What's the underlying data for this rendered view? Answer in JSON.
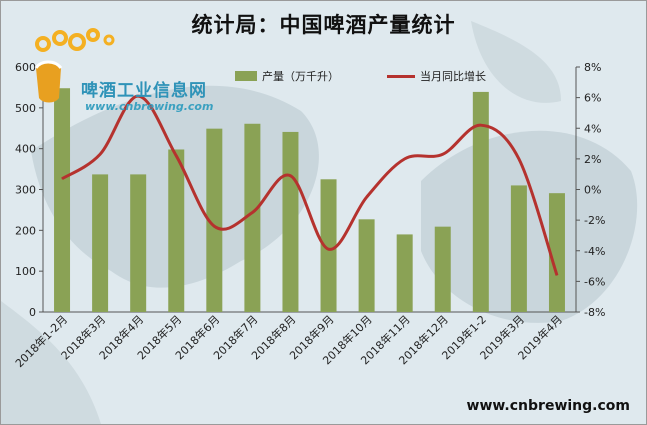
{
  "chart_data": {
    "type": "bar",
    "title": "统计局：中国啤酒产量统计",
    "categories": [
      "2018年1-2月",
      "2018年3月",
      "2018年4月",
      "2018年5月",
      "2018年6月",
      "2018年7月",
      "2018年8月",
      "2018年9月",
      "2018年10月",
      "2018年11月",
      "2018年12月",
      "2019年1-2",
      "2019年3月",
      "2019年4月"
    ],
    "series": [
      {
        "name": "产量（万千升）",
        "type": "bar",
        "axis": "left",
        "color": "#8aa255",
        "values": [
          548,
          337,
          337,
          398,
          449,
          461,
          441,
          325,
          227,
          190,
          209,
          539,
          310,
          291
        ]
      },
      {
        "name": "当月同比增长",
        "type": "line",
        "axis": "right",
        "color": "#b5322e",
        "values": [
          0.7,
          2.3,
          6.1,
          2.2,
          -2.4,
          -1.5,
          0.9,
          -3.9,
          -0.5,
          2.0,
          2.3,
          4.2,
          2.0,
          -5.6
        ]
      }
    ],
    "y_left": {
      "ylim": [
        0,
        600
      ],
      "ticks": [
        "0",
        "100",
        "200",
        "300",
        "400",
        "500",
        "600"
      ]
    },
    "y_right": {
      "ylim": [
        -8,
        8
      ],
      "ticks": [
        "-8%",
        "-6%",
        "-4%",
        "-2%",
        "0%",
        "2%",
        "4%",
        "6%",
        "8%"
      ]
    },
    "grid": false,
    "legend": "top"
  },
  "logo": {
    "name": "啤酒工业信息网",
    "url": "www.cnbrewing.com"
  },
  "watermark": "www.cnbrewing.com"
}
